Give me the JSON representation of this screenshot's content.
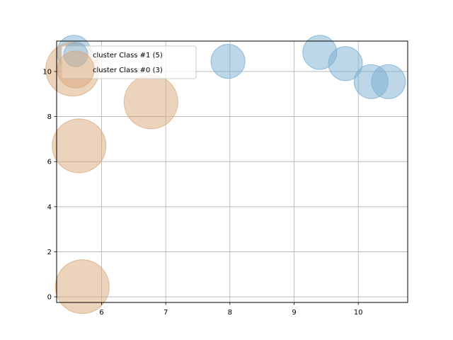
{
  "chart_data": {
    "type": "scatter",
    "title": "",
    "xlabel": "",
    "ylabel": "",
    "xlim": [
      5.3,
      10.77
    ],
    "ylim": [
      -0.25,
      11.35
    ],
    "xticks": [
      6,
      7,
      8,
      9,
      10
    ],
    "yticks": [
      0,
      2,
      4,
      6,
      8,
      10
    ],
    "grid": true,
    "legend_position": "top-left",
    "series": [
      {
        "name": "cluster Class #1 (5)",
        "color": "#7bafd4",
        "points": [
          {
            "x": 5.57,
            "y": 10.85
          },
          {
            "x": 7.97,
            "y": 10.45
          },
          {
            "x": 9.4,
            "y": 10.85
          },
          {
            "x": 9.8,
            "y": 10.35
          },
          {
            "x": 10.2,
            "y": 9.55
          },
          {
            "x": 10.47,
            "y": 9.55
          }
        ]
      },
      {
        "name": "cluster Class #0 (3)",
        "color": "#d9a77a",
        "points": [
          {
            "x": 5.55,
            "y": 10.1
          },
          {
            "x": 6.77,
            "y": 8.65
          },
          {
            "x": 5.65,
            "y": 6.7
          },
          {
            "x": 5.7,
            "y": 0.45
          }
        ]
      }
    ]
  }
}
